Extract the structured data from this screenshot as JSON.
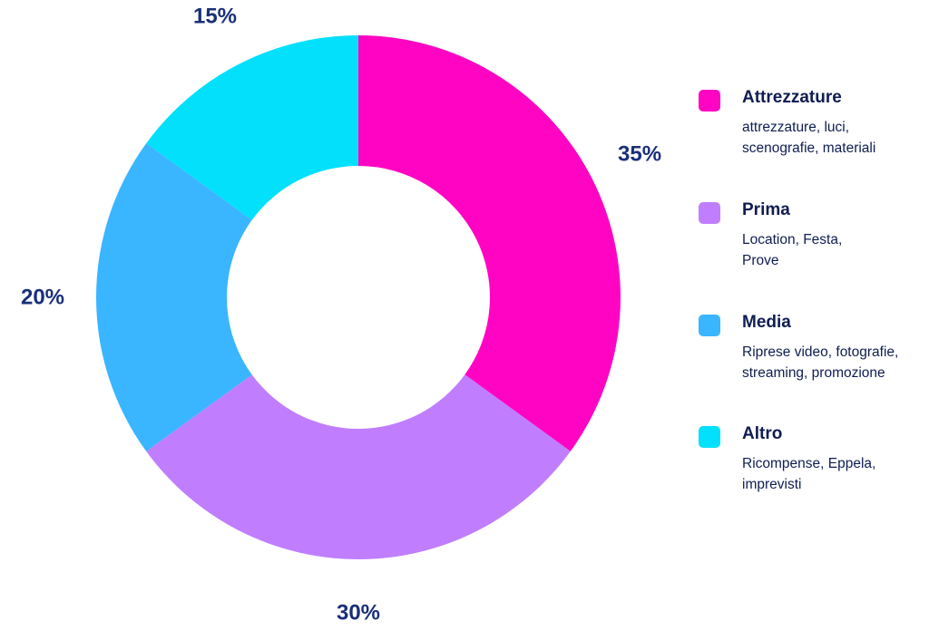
{
  "chart_data": {
    "type": "pie",
    "variant": "donut",
    "categories": [
      "Attrezzature",
      "Prima",
      "Media",
      "Altro"
    ],
    "values": [
      35,
      30,
      20,
      15
    ],
    "value_labels": [
      "35%",
      "30%",
      "20%",
      "15%"
    ],
    "colors": [
      "#ff05c3",
      "#c07eff",
      "#3ab5ff",
      "#02e0fc"
    ],
    "legend_placement": "right",
    "legend": [
      {
        "name": "Attrezzature",
        "color": "#ff05c3",
        "desc_lines": [
          "attrezzature, luci,",
          "scenografie, materiali"
        ]
      },
      {
        "name": "Prima",
        "color": "#c07eff",
        "desc_lines": [
          "Location, Festa,",
          "Prove"
        ]
      },
      {
        "name": "Media",
        "color": "#3ab5ff",
        "desc_lines": [
          "Riprese video, fotografie,",
          "streaming, promozione"
        ]
      },
      {
        "name": "Altro",
        "color": "#02e0fc",
        "desc_lines": [
          "Ricompense, Eppela,",
          "imprevisti"
        ]
      }
    ],
    "label_color": "#1a2f7a"
  }
}
